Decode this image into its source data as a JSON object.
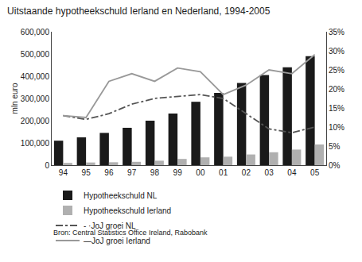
{
  "chart_data": {
    "type": "bar",
    "title": "Uitstaande hypotheekschuld Ierland en Nederland, 1994-2005",
    "ylabel": "mln euro",
    "annotations": [
      "Bron: Central Statistics Office Ireland, Rabobank"
    ],
    "categories": [
      "94",
      "95",
      "96",
      "97",
      "98",
      "99",
      "00",
      "01",
      "02",
      "03",
      "04",
      "05"
    ],
    "series": [
      {
        "name": "Hypotheekschuld NL",
        "type": "bar",
        "color": "#1a1a1a",
        "values": [
          110000,
          125000,
          145000,
          168000,
          200000,
          232000,
          285000,
          325000,
          370000,
          405000,
          440000,
          490000
        ]
      },
      {
        "name": "Hypotheekschuld Ierland",
        "type": "bar",
        "color": "#b0b0b0",
        "values": [
          10000,
          12000,
          13000,
          15000,
          20000,
          28000,
          35000,
          38000,
          48000,
          58000,
          70000,
          93000
        ]
      },
      {
        "name": "- ·JoJ groei NL",
        "type": "line",
        "axis": "y2",
        "color": "#555555",
        "line_style": "dashdot",
        "values": [
          0.13,
          0.12,
          0.135,
          0.16,
          0.175,
          0.18,
          0.185,
          0.175,
          0.135,
          0.095,
          0.085,
          0.1
        ]
      },
      {
        "name": "—JoJ groei Ierland",
        "type": "line",
        "axis": "y2",
        "color": "#999999",
        "line_style": "solid",
        "values": [
          0.13,
          0.125,
          0.22,
          0.24,
          0.22,
          0.255,
          0.245,
          0.185,
          0.21,
          0.25,
          0.24,
          0.29
        ]
      }
    ],
    "ylim": [
      0,
      600000
    ],
    "yticks": [
      0,
      {
        "value": 100000,
        "label": "100,000"
      },
      {
        "value": 200000,
        "label": "200,000"
      },
      {
        "value": 300000,
        "label": "300,000"
      },
      {
        "value": 400000,
        "label": "400,000"
      },
      {
        "value": 500000,
        "label": "500,000"
      },
      {
        "value": 600000,
        "label": "600,000"
      }
    ],
    "y2lim": [
      0,
      0.35
    ],
    "y2ticks": [
      {
        "value": 0.0,
        "label": "0%"
      },
      {
        "value": 0.05,
        "label": "5%"
      },
      {
        "value": 0.1,
        "label": "10%"
      },
      {
        "value": 0.15,
        "label": "15%"
      },
      {
        "value": 0.2,
        "label": "20%"
      },
      {
        "value": 0.25,
        "label": "25%"
      },
      {
        "value": 0.3,
        "label": "30%"
      },
      {
        "value": 0.35,
        "label": "35%"
      }
    ],
    "grid": false,
    "legend": "bottom"
  }
}
